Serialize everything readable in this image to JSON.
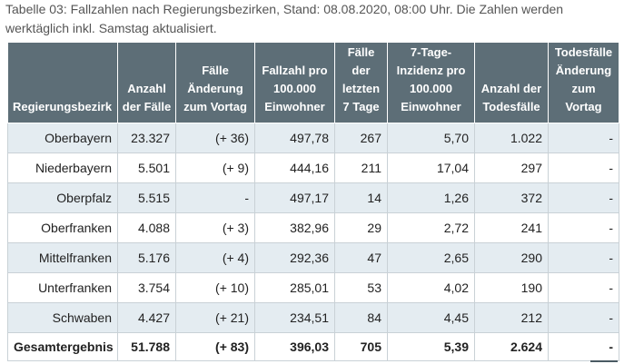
{
  "caption": "Tabelle 03: Fallzahlen nach Regierungsbezirken, Stand: 08.08.2020, 08:00 Uhr. Die Zahlen werden werktäglich inkl. Samstag aktualisiert.",
  "columns": [
    "Regierungsbezirk",
    "Anzahl der Fälle",
    "Fälle Änderung zum Vortag",
    "Fallzahl pro 100.000 Einwohner",
    "Fälle der letzten 7 Tage",
    "7-Tage-Inzidenz pro 100.000 Einwohner",
    "Anzahl der Todesfälle",
    "Todesfälle Änderung zum Vortag"
  ],
  "rows": [
    [
      "Oberbayern",
      "23.327",
      "(+ 36)",
      "497,78",
      "267",
      "5,70",
      "1.022",
      "-"
    ],
    [
      "Niederbayern",
      "5.501",
      "(+ 9)",
      "444,16",
      "211",
      "17,04",
      "297",
      "-"
    ],
    [
      "Oberpfalz",
      "5.515",
      "-",
      "497,17",
      "14",
      "1,26",
      "372",
      "-"
    ],
    [
      "Oberfranken",
      "4.088",
      "(+ 3)",
      "382,96",
      "29",
      "2,72",
      "241",
      "-"
    ],
    [
      "Mittelfranken",
      "5.176",
      "(+ 4)",
      "292,36",
      "47",
      "2,65",
      "290",
      "-"
    ],
    [
      "Unterfranken",
      "3.754",
      "(+ 10)",
      "285,01",
      "53",
      "4,02",
      "190",
      "-"
    ],
    [
      "Schwaben",
      "4.427",
      "(+ 21)",
      "234,51",
      "84",
      "4,45",
      "212",
      "-"
    ]
  ],
  "total": [
    "Gesamtergebnis",
    "51.788",
    "(+ 83)",
    "396,03",
    "705",
    "5,39",
    "2.624",
    "-"
  ]
}
